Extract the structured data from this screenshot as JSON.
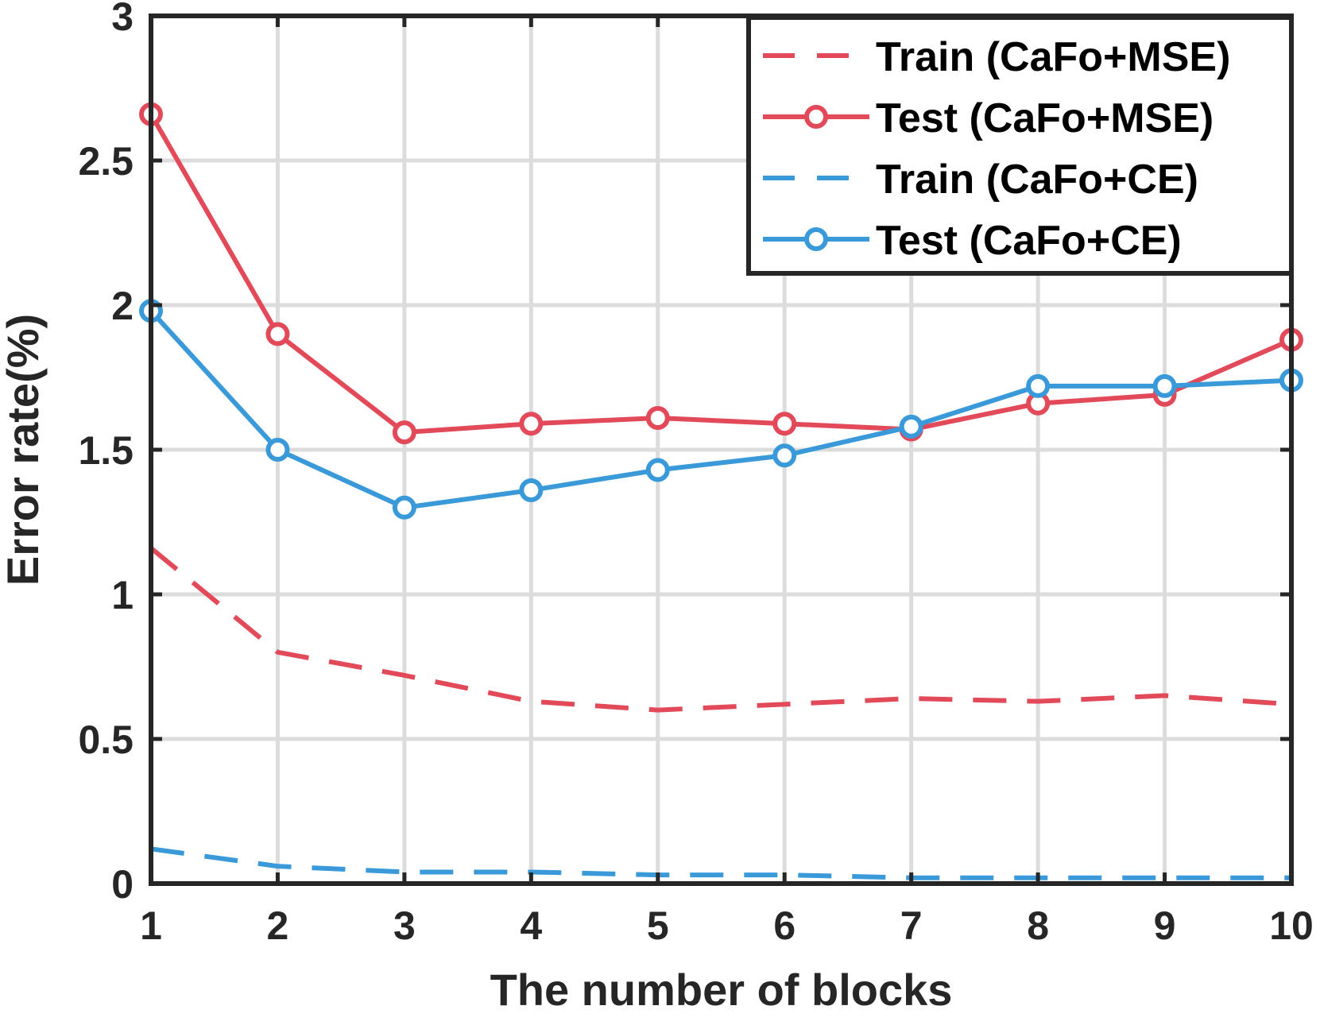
{
  "chart_data": {
    "type": "line",
    "x": [
      1,
      2,
      3,
      4,
      5,
      6,
      7,
      8,
      9,
      10
    ],
    "xlabel": "The number of blocks",
    "ylabel": "Error rate(%)",
    "xlim": [
      1,
      10
    ],
    "ylim": [
      0,
      3
    ],
    "xticks": [
      "1",
      "2",
      "3",
      "4",
      "5",
      "6",
      "7",
      "8",
      "9",
      "10"
    ],
    "yticks": [
      "0",
      "0.5",
      "1",
      "1.5",
      "2",
      "2.5",
      "3"
    ],
    "grid": true,
    "legend_position": "top-right",
    "series": [
      {
        "name": "Train (CaFo+MSE)",
        "color": "#e24a5a",
        "line_style": "dashed",
        "marker": "none",
        "values": [
          1.16,
          0.8,
          0.72,
          0.63,
          0.6,
          0.62,
          0.64,
          0.63,
          0.65,
          0.62
        ]
      },
      {
        "name": "Test (CaFo+MSE)",
        "color": "#e24a5a",
        "line_style": "solid",
        "marker": "circle",
        "values": [
          2.66,
          1.9,
          1.56,
          1.59,
          1.61,
          1.59,
          1.57,
          1.66,
          1.69,
          1.88
        ]
      },
      {
        "name": "Train (CaFo+CE)",
        "color": "#3a9ad9",
        "line_style": "dashed",
        "marker": "none",
        "values": [
          0.12,
          0.06,
          0.04,
          0.04,
          0.03,
          0.03,
          0.02,
          0.02,
          0.02,
          0.02
        ]
      },
      {
        "name": "Test (CaFo+CE)",
        "color": "#3a9ad9",
        "line_style": "solid",
        "marker": "circle",
        "values": [
          1.98,
          1.5,
          1.3,
          1.36,
          1.43,
          1.48,
          1.58,
          1.72,
          1.72,
          1.74
        ]
      }
    ]
  }
}
